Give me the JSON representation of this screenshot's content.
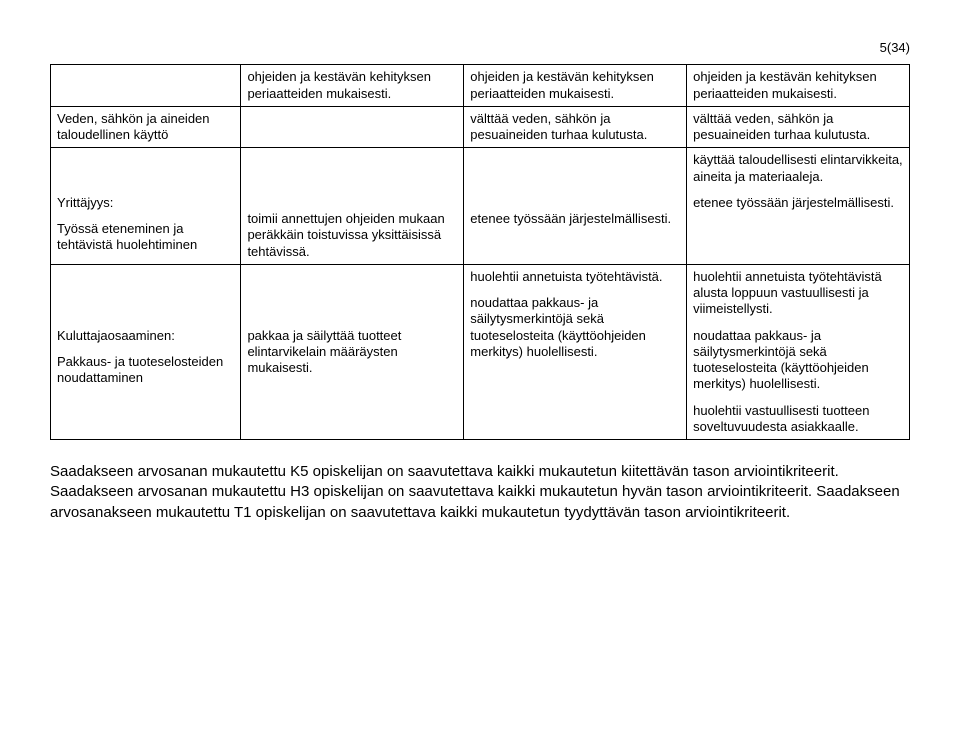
{
  "page_number": "5(34)",
  "table": {
    "rows": [
      {
        "col0": [
          ""
        ],
        "col1": [
          "ohjeiden ja kestävän kehityksen periaatteiden mukaisesti."
        ],
        "col2": [
          "ohjeiden ja kestävän kehityksen periaatteiden mukaisesti."
        ],
        "col3": [
          "ohjeiden ja kestävän kehityksen periaatteiden mukaisesti."
        ]
      },
      {
        "col0": [
          "Veden, sähkön ja aineiden taloudellinen käyttö"
        ],
        "col1": [
          ""
        ],
        "col2": [
          "välttää veden, sähkön ja pesuaineiden turhaa kulutusta."
        ],
        "col3": [
          "välttää veden, sähkön ja pesuaineiden turhaa kulutusta."
        ]
      },
      {
        "col0": [
          "Yrittäjyys:",
          "Työssä eteneminen ja tehtävistä huolehtiminen"
        ],
        "col1": [
          "toimii annettujen ohjeiden mukaan peräkkäin toistuvissa yksittäisissä tehtävissä."
        ],
        "col2": [
          "etenee työssään järjestelmällisesti."
        ],
        "col3": [
          "käyttää taloudellisesti elintarvikkeita, aineita ja materiaaleja.",
          "etenee työssään järjestelmällisesti."
        ]
      },
      {
        "col0": [
          "Kuluttajaosaaminen:",
          "Pakkaus- ja tuoteselosteiden noudattaminen"
        ],
        "col1": [
          "pakkaa ja säilyttää tuotteet elintarvikelain määräysten mukaisesti."
        ],
        "col2": [
          "huolehtii annetuista työtehtävistä.",
          "noudattaa pakkaus- ja säilytysmerkintöjä sekä tuoteselosteita (käyttöohjeiden merkitys) huolellisesti."
        ],
        "col3": [
          "huolehtii annetuista työtehtävistä alusta loppuun vastuullisesti ja viimeistellysti.",
          "noudattaa pakkaus- ja säilytysmerkintöjä sekä tuoteselosteita (käyttöohjeiden merkitys) huolellisesti.",
          "huolehtii vastuullisesti tuotteen soveltuvuudesta asiakkaalle."
        ]
      }
    ]
  },
  "footer_paragraph": "Saadakseen arvosanan mukautettu K5 opiskelijan on saavutettava kaikki mukautetun kiitettävän tason arviointikriteerit. Saadakseen arvosanan mukautettu H3 opiskelijan on saavutettava kaikki mukautetun hyvän tason arviointikriteerit. Saadakseen arvosanakseen mukautettu T1 opiskelijan on saavutettava kaikki mukautetun tyydyttävän tason arviointikriteerit."
}
